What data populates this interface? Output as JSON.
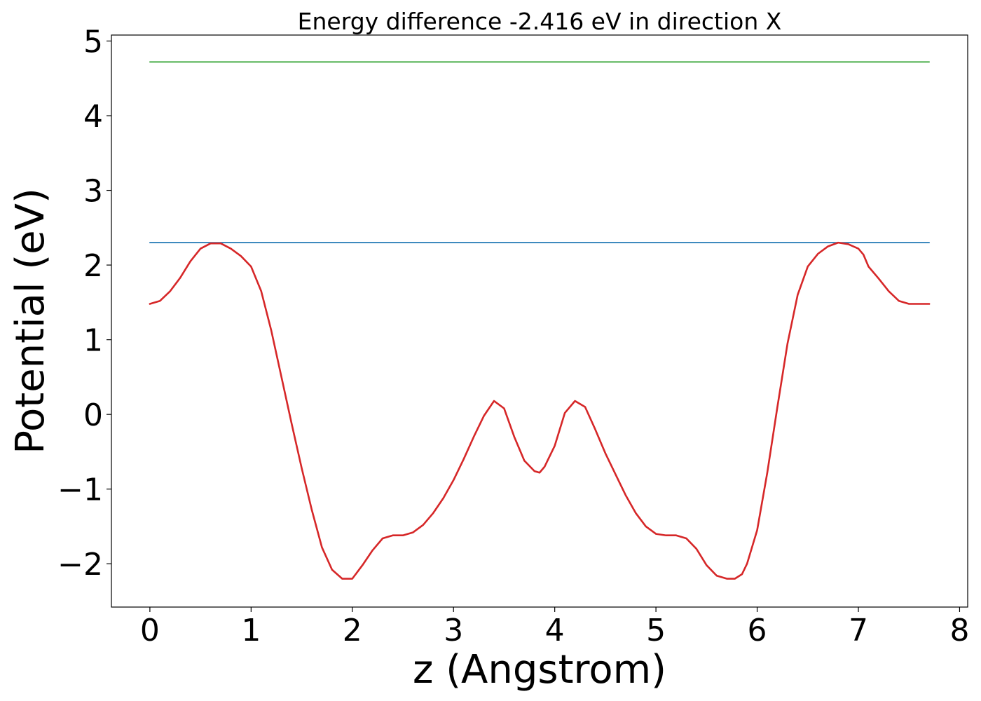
{
  "chart_data": {
    "type": "line",
    "title": "Energy difference -2.416 eV in direction X",
    "xlabel": "z (Angstrom)",
    "ylabel": "Potential (eV)",
    "xlim": [
      -0.38,
      8.08
    ],
    "ylim": [
      -2.58,
      5.08
    ],
    "xticks": [
      0,
      1,
      2,
      3,
      4,
      5,
      6,
      7,
      8
    ],
    "xtick_labels": [
      "0",
      "1",
      "2",
      "3",
      "4",
      "5",
      "6",
      "7",
      "8"
    ],
    "yticks": [
      -2,
      -1,
      0,
      1,
      2,
      3,
      4,
      5
    ],
    "ytick_labels": [
      "−2",
      "−1",
      "0",
      "1",
      "2",
      "3",
      "4",
      "5"
    ],
    "grid": false,
    "series": [
      {
        "color": "#d62728",
        "x": [
          0.0,
          0.1,
          0.2,
          0.3,
          0.4,
          0.5,
          0.6,
          0.7,
          0.8,
          0.9,
          1.0,
          1.1,
          1.2,
          1.3,
          1.4,
          1.5,
          1.6,
          1.7,
          1.8,
          1.9,
          2.0,
          2.1,
          2.2,
          2.3,
          2.4,
          2.5,
          2.6,
          2.7,
          2.8,
          2.9,
          3.0,
          3.1,
          3.2,
          3.3,
          3.4,
          3.5,
          3.6,
          3.7,
          3.8,
          3.85,
          3.9,
          4.0,
          4.1,
          4.2,
          4.3,
          4.4,
          4.5,
          4.6,
          4.7,
          4.8,
          4.9,
          5.0,
          5.1,
          5.2,
          5.3,
          5.4,
          5.5,
          5.6,
          5.7,
          5.78,
          5.85,
          5.9,
          6.0,
          6.1,
          6.2,
          6.3,
          6.4,
          6.5,
          6.6,
          6.7,
          6.8,
          6.9,
          7.0,
          7.05,
          7.1,
          7.2,
          7.3,
          7.4,
          7.5,
          7.6,
          7.7
        ],
        "y": [
          1.48,
          1.52,
          1.65,
          1.83,
          2.05,
          2.22,
          2.29,
          2.29,
          2.22,
          2.12,
          1.98,
          1.65,
          1.12,
          0.5,
          -0.12,
          -0.72,
          -1.28,
          -1.78,
          -2.08,
          -2.2,
          -2.2,
          -2.02,
          -1.82,
          -1.66,
          -1.62,
          -1.62,
          -1.58,
          -1.48,
          -1.32,
          -1.12,
          -0.88,
          -0.6,
          -0.3,
          -0.02,
          0.18,
          0.08,
          -0.3,
          -0.62,
          -0.76,
          -0.78,
          -0.7,
          -0.42,
          0.02,
          0.18,
          0.1,
          -0.2,
          -0.52,
          -0.8,
          -1.08,
          -1.32,
          -1.5,
          -1.6,
          -1.62,
          -1.62,
          -1.66,
          -1.8,
          -2.02,
          -2.16,
          -2.2,
          -2.2,
          -2.14,
          -2.0,
          -1.55,
          -0.78,
          0.1,
          0.95,
          1.6,
          1.98,
          2.15,
          2.25,
          2.3,
          2.28,
          2.22,
          2.14,
          1.98,
          1.82,
          1.65,
          1.52,
          1.48,
          1.48,
          1.48
        ]
      },
      {
        "color": "#1f77b4",
        "x": [
          0.0,
          7.7
        ],
        "y": [
          2.3,
          2.3
        ]
      },
      {
        "color": "#2ca02c",
        "x": [
          0.0,
          7.7
        ],
        "y": [
          4.72,
          4.72
        ]
      }
    ]
  }
}
